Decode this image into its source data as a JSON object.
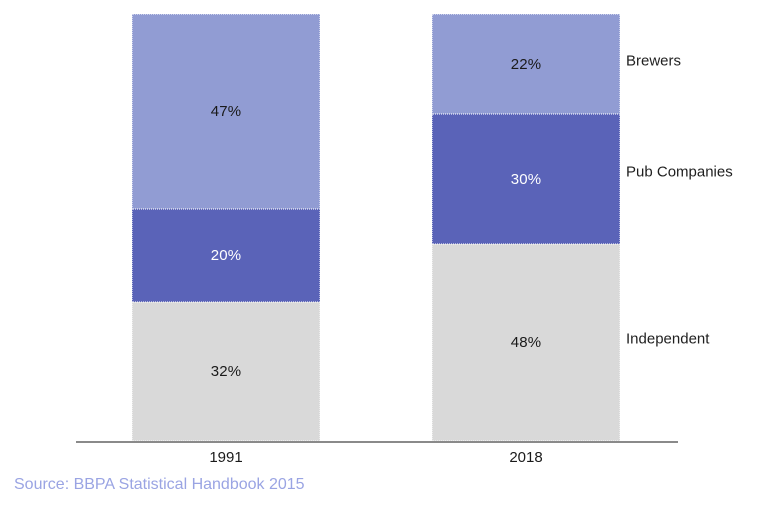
{
  "chart_data": {
    "type": "bar",
    "variant": "stacked",
    "unit": "%",
    "categories": [
      "1991",
      "2018"
    ],
    "series": [
      {
        "name": "Brewers",
        "values": [
          47,
          22
        ],
        "color": "#919CD3",
        "label_color": "#1a1a1a"
      },
      {
        "name": "Pub Companies",
        "values": [
          20,
          30
        ],
        "color": "#5A63B8",
        "label_color": "#ffffff"
      },
      {
        "name": "Independent",
        "values": [
          32,
          48
        ],
        "color": "#D9D9D9",
        "label_color": "#1a1a1a"
      }
    ],
    "title": "",
    "xlabel": "",
    "ylabel": "",
    "legend_position": "right-of-last-bar",
    "grid": false,
    "axis_color": "#8a8a8a"
  },
  "source_note": "Source: BBPA Statistical Handbook 2015",
  "colors": {
    "background": "#ffffff",
    "source_text": "#9AA4E3"
  }
}
